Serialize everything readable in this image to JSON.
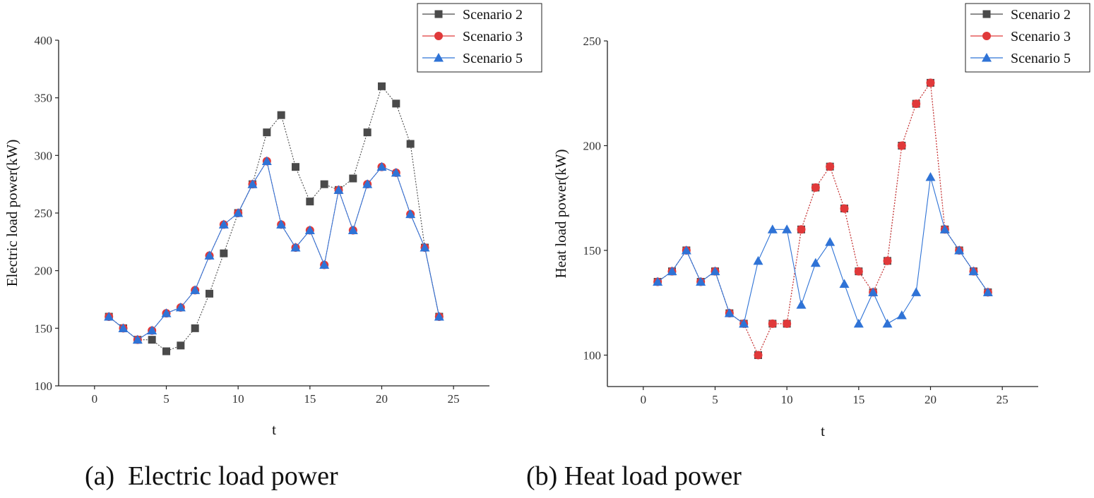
{
  "captions": {
    "a": "(a)  Electric load power",
    "b": "(b) Heat load power"
  },
  "chart_data": [
    {
      "type": "line",
      "title": "",
      "xlabel": "t",
      "ylabel": "Electric load power(kW)",
      "xlim": [
        -2.5,
        27.5
      ],
      "ylim": [
        100,
        400
      ],
      "xticks": [
        0,
        5,
        10,
        15,
        20,
        25
      ],
      "yticks": [
        100,
        150,
        200,
        250,
        300,
        350,
        400
      ],
      "legend_position": "top-right",
      "x": [
        1,
        2,
        3,
        4,
        5,
        6,
        7,
        8,
        9,
        10,
        11,
        12,
        13,
        14,
        15,
        16,
        17,
        18,
        19,
        20,
        21,
        22,
        23,
        24
      ],
      "series": [
        {
          "name": "Scenario 2",
          "marker": "square",
          "color": "#4a4a4a",
          "values": [
            160,
            150,
            140,
            140,
            130,
            135,
            150,
            180,
            215,
            250,
            275,
            320,
            335,
            290,
            260,
            275,
            270,
            280,
            320,
            360,
            345,
            310,
            220,
            160
          ]
        },
        {
          "name": "Scenario 3",
          "marker": "circle",
          "color": "#e0393a",
          "values": [
            160,
            150,
            140,
            148,
            163,
            168,
            183,
            213,
            240,
            250,
            275,
            295,
            240,
            220,
            235,
            205,
            270,
            235,
            275,
            290,
            285,
            249,
            220,
            160
          ]
        },
        {
          "name": "Scenario 5",
          "marker": "triangle",
          "color": "#2f73d6",
          "values": [
            160,
            150,
            140,
            148,
            163,
            168,
            183,
            213,
            240,
            250,
            275,
            295,
            240,
            220,
            235,
            205,
            270,
            235,
            275,
            290,
            285,
            249,
            220,
            160
          ]
        }
      ]
    },
    {
      "type": "line",
      "title": "",
      "xlabel": "t",
      "ylabel": "Heat load power(kW)",
      "xlim": [
        -2.5,
        27.5
      ],
      "ylim": [
        85,
        250
      ],
      "xticks": [
        0,
        5,
        10,
        15,
        20,
        25
      ],
      "yticks": [
        100,
        150,
        200,
        250
      ],
      "legend_position": "top-right",
      "x": [
        1,
        2,
        3,
        4,
        5,
        6,
        7,
        8,
        9,
        10,
        11,
        12,
        13,
        14,
        15,
        16,
        17,
        18,
        19,
        20,
        21,
        22,
        23,
        24
      ],
      "series": [
        {
          "name": "Scenario 2",
          "marker": "square",
          "color": "#4a4a4a",
          "values": [
            135,
            140,
            150,
            135,
            140,
            120,
            115,
            100,
            115,
            115,
            160,
            180,
            190,
            170,
            140,
            130,
            145,
            200,
            220,
            230,
            160,
            150,
            140,
            130
          ]
        },
        {
          "name": "Scenario 3",
          "marker": "circle",
          "color": "#e0393a",
          "values": [
            135,
            140,
            150,
            135,
            140,
            120,
            115,
            100,
            115,
            115,
            160,
            180,
            190,
            170,
            140,
            130,
            145,
            200,
            220,
            230,
            160,
            150,
            140,
            130
          ]
        },
        {
          "name": "Scenario 5",
          "marker": "triangle",
          "color": "#2f73d6",
          "values": [
            135,
            140,
            150,
            135,
            140,
            120,
            115,
            145,
            160,
            160,
            124,
            144,
            154,
            134,
            115,
            130,
            115,
            119,
            130,
            185,
            160,
            150,
            140,
            130
          ]
        }
      ]
    }
  ]
}
